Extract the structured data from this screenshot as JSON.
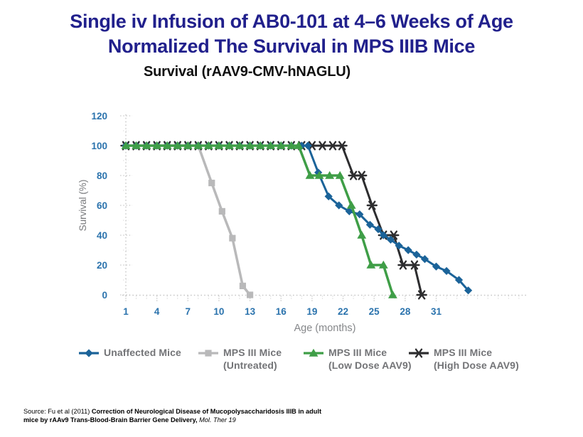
{
  "slide": {
    "title_line1": "Single iv Infusion of AB0-101 at 4–6 Weeks of Age",
    "title_line2": "Normalized The Survival in MPS IIIB Mice",
    "title_color": "#21208c",
    "subtitle": "Survival (rAAV9-CMV-hNAGLU)"
  },
  "legend": [
    {
      "line1": "Unaffected Mice",
      "line2": ""
    },
    {
      "line1": "MPS III Mice",
      "line2": "(Untreated)"
    },
    {
      "line1": "MPS III Mice",
      "line2": "(Low Dose AAV9)"
    },
    {
      "line1": "MPS III Mice",
      "line2": "(High Dose AAV9)"
    }
  ],
  "source": {
    "prefix": "Source: Fu et al (2011) ",
    "bold": "Correction of Neurological Disease of Mucopolysaccharidosis IIIB in adult mice by rAAv9  Trans-Blood-Brain Barrier Gene Delivery, ",
    "italic": "Mol. Ther 19"
  },
  "chart_data": {
    "type": "line",
    "title": "Survival (rAAV9-CMV-hNAGLU)",
    "xlabel": "Age (months)",
    "ylabel": "Survival (%)",
    "x_ticks": [
      1,
      4,
      7,
      10,
      13,
      16,
      19,
      22,
      25,
      28,
      31
    ],
    "y_ticks": [
      0,
      20,
      40,
      60,
      80,
      100,
      120
    ],
    "xlim": [
      1,
      35.5
    ],
    "ylim": [
      0,
      120
    ],
    "grid": "dotted axis lines only, light gray",
    "legend_position": "bottom",
    "axis_tick_color": "#2b73ad",
    "series": [
      {
        "id": "unaffected",
        "name": "Unaffected Mice",
        "color": "#1b6399",
        "marker": "diamond",
        "width": 3,
        "points": [
          [
            1,
            100
          ],
          [
            2,
            100
          ],
          [
            3,
            100
          ],
          [
            4,
            100
          ],
          [
            5,
            100
          ],
          [
            6,
            100
          ],
          [
            7,
            100
          ],
          [
            8,
            100
          ],
          [
            9,
            100
          ],
          [
            10,
            100
          ],
          [
            11,
            100
          ],
          [
            12,
            100
          ],
          [
            13,
            100
          ],
          [
            14,
            100
          ],
          [
            15,
            100
          ],
          [
            16,
            100
          ],
          [
            17,
            100
          ],
          [
            18,
            100
          ],
          [
            18.6,
            100
          ],
          [
            19.6,
            82
          ],
          [
            20.6,
            66
          ],
          [
            21.6,
            60
          ],
          [
            22.6,
            56
          ],
          [
            23.6,
            54
          ],
          [
            24.6,
            47
          ],
          [
            25.4,
            44
          ],
          [
            25.9,
            40
          ],
          [
            26.6,
            37
          ],
          [
            27.4,
            33
          ],
          [
            28.3,
            30
          ],
          [
            29.1,
            27
          ],
          [
            29.9,
            24
          ],
          [
            31,
            19
          ],
          [
            32,
            16
          ],
          [
            33.2,
            10
          ],
          [
            34.1,
            3
          ]
        ]
      },
      {
        "id": "untreated",
        "name": "MPS III Mice (Untreated)",
        "color": "#b9b9ba",
        "marker": "square",
        "width": 3.5,
        "points": [
          [
            1,
            100
          ],
          [
            2,
            100
          ],
          [
            3,
            100
          ],
          [
            4,
            100
          ],
          [
            5,
            100
          ],
          [
            6,
            100
          ],
          [
            7,
            100
          ],
          [
            8,
            100
          ],
          [
            9.3,
            75
          ],
          [
            10.3,
            56
          ],
          [
            11.3,
            38
          ],
          [
            12.3,
            6
          ],
          [
            13,
            0
          ]
        ]
      },
      {
        "id": "low-dose",
        "name": "MPS III Mice (Low Dose AAV9)",
        "color": "#3f9e47",
        "marker": "triangle",
        "width": 3.5,
        "points": [
          [
            1,
            100
          ],
          [
            2,
            100
          ],
          [
            3,
            100
          ],
          [
            4,
            100
          ],
          [
            5,
            100
          ],
          [
            6,
            100
          ],
          [
            7,
            100
          ],
          [
            8,
            100
          ],
          [
            9,
            100
          ],
          [
            10,
            100
          ],
          [
            11,
            100
          ],
          [
            12,
            100
          ],
          [
            13,
            100
          ],
          [
            14,
            100
          ],
          [
            15,
            100
          ],
          [
            16,
            100
          ],
          [
            17,
            100
          ],
          [
            17.7,
            100
          ],
          [
            18.8,
            80
          ],
          [
            19.7,
            80
          ],
          [
            20.7,
            80
          ],
          [
            21.7,
            80
          ],
          [
            22.8,
            60
          ],
          [
            23.8,
            40
          ],
          [
            24.7,
            20
          ],
          [
            25.9,
            20
          ],
          [
            26.8,
            0
          ]
        ]
      },
      {
        "id": "high-dose",
        "name": "MPS III Mice (High Dose AAV9)",
        "color": "#2d2d2f",
        "marker": "asterisk",
        "width": 3,
        "points": [
          [
            1,
            100
          ],
          [
            2,
            100
          ],
          [
            3,
            100
          ],
          [
            4,
            100
          ],
          [
            5,
            100
          ],
          [
            6,
            100
          ],
          [
            7,
            100
          ],
          [
            8,
            100
          ],
          [
            9,
            100
          ],
          [
            10,
            100
          ],
          [
            11,
            100
          ],
          [
            12,
            100
          ],
          [
            13,
            100
          ],
          [
            14,
            100
          ],
          [
            15,
            100
          ],
          [
            16,
            100
          ],
          [
            17,
            100
          ],
          [
            18,
            100
          ],
          [
            19,
            100
          ],
          [
            20,
            100
          ],
          [
            21,
            100
          ],
          [
            21.9,
            100
          ],
          [
            23,
            80
          ],
          [
            23.8,
            80
          ],
          [
            24.8,
            60
          ],
          [
            25.9,
            40
          ],
          [
            26.9,
            40
          ],
          [
            27.8,
            20
          ],
          [
            28.9,
            20
          ],
          [
            29.6,
            0
          ]
        ]
      }
    ]
  }
}
